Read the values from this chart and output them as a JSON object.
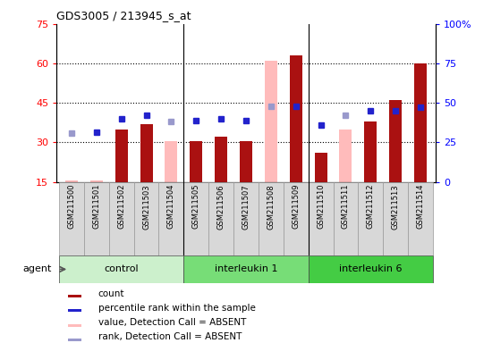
{
  "title": "GDS3005 / 213945_s_at",
  "samples": [
    "GSM211500",
    "GSM211501",
    "GSM211502",
    "GSM211503",
    "GSM211504",
    "GSM211505",
    "GSM211506",
    "GSM211507",
    "GSM211508",
    "GSM211509",
    "GSM211510",
    "GSM211511",
    "GSM211512",
    "GSM211513",
    "GSM211514"
  ],
  "groups": [
    {
      "name": "control",
      "start": 0,
      "end": 4,
      "color": "#ccf0cc"
    },
    {
      "name": "interleukin 1",
      "start": 5,
      "end": 9,
      "color": "#66dd66"
    },
    {
      "name": "interleukin 6",
      "start": 10,
      "end": 14,
      "color": "#44cc44"
    }
  ],
  "count_present": [
    null,
    null,
    35,
    37,
    null,
    30.5,
    32,
    30.5,
    null,
    63,
    26,
    null,
    38,
    46,
    60
  ],
  "count_absent": [
    15.5,
    15.5,
    null,
    null,
    30.5,
    null,
    null,
    null,
    61,
    null,
    null,
    35,
    null,
    null,
    null
  ],
  "rank_present": [
    null,
    31.5,
    40,
    42,
    null,
    39,
    40,
    39,
    null,
    48,
    36,
    null,
    45,
    45,
    47
  ],
  "rank_absent": [
    31,
    null,
    null,
    null,
    38,
    null,
    null,
    null,
    48,
    null,
    null,
    42,
    null,
    null,
    null
  ],
  "bar_color": "#aa1111",
  "bar_absent_color": "#ffbbbb",
  "dot_color": "#2222cc",
  "dot_absent_color": "#9999cc",
  "ylim_left": [
    15,
    75
  ],
  "ylim_right": [
    0,
    100
  ],
  "yticks_left": [
    15,
    30,
    45,
    60,
    75
  ],
  "yticks_right": [
    0,
    25,
    50,
    75,
    100
  ],
  "yticklabels_right": [
    "0",
    "25",
    "50",
    "75",
    "100%"
  ],
  "gridlines": [
    30,
    45,
    60
  ],
  "legend": [
    {
      "color": "#aa1111",
      "label": "count"
    },
    {
      "color": "#2222cc",
      "label": "percentile rank within the sample"
    },
    {
      "color": "#ffbbbb",
      "label": "value, Detection Call = ABSENT"
    },
    {
      "color": "#9999cc",
      "label": "rank, Detection Call = ABSENT"
    }
  ]
}
